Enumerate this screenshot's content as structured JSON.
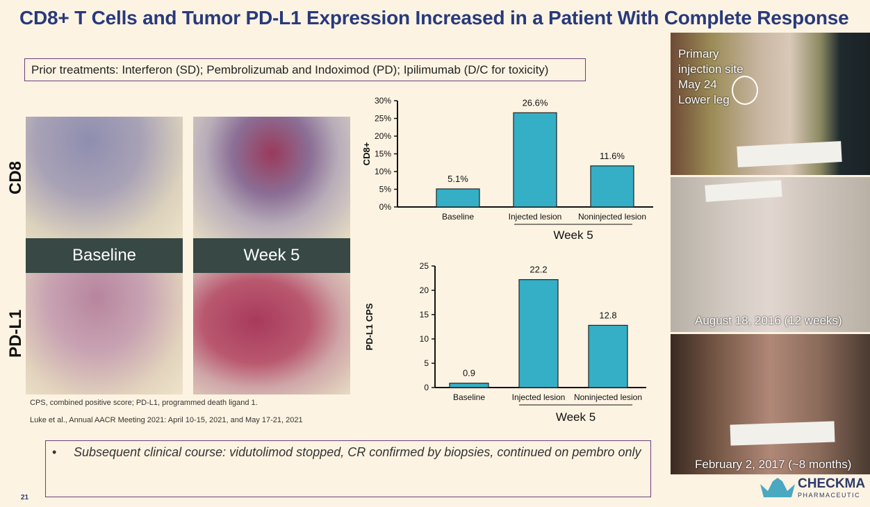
{
  "title": "CD8+ T Cells and Tumor PD-L1 Expression Increased in a Patient With Complete Response",
  "prior_treatments": "Prior treatments: Interferon (SD); Pembrolizumab and Indoximod (PD); Ipilimumab (D/C for toxicity)",
  "histology": {
    "row_labels": [
      "CD8",
      "PD-L1"
    ],
    "column_labels": [
      "Baseline",
      "Week 5"
    ]
  },
  "photos": [
    {
      "caption_lines": [
        "Primary",
        "injection site",
        "May 24",
        "Lower leg"
      ]
    },
    {
      "caption": "August 18, 2016 (12 weeks)"
    },
    {
      "caption": "February 2, 2017 (~8 months)"
    }
  ],
  "footnotes": [
    "CPS, combined positive score; PD-L1, programmed death ligand 1.",
    "Luke et al., Annual AACR Meeting 2021: April 10-15, 2021, and May 17-21, 2021"
  ],
  "clinical_course": "Subsequent clinical course: vidutolimod stopped, CR confirmed by biopsies, continued on pembro only",
  "page_number": "21",
  "logo": {
    "name": "CHECKMATE",
    "sub": "PHARMACEUTICALS",
    "color": "#4aa8c0"
  },
  "colors": {
    "bar": "#35afc6",
    "title": "#283a7c",
    "background": "#fdf3e2"
  },
  "chart_data": [
    {
      "type": "bar",
      "categories": [
        "Baseline",
        "Injected lesion",
        "Noninjected lesion"
      ],
      "values": [
        5.1,
        26.6,
        11.6
      ],
      "data_labels": [
        "5.1%",
        "26.6%",
        "11.6%"
      ],
      "ylabel": "CD8+",
      "ylim": [
        0,
        30
      ],
      "yticks": [
        "0%",
        "5%",
        "10%",
        "15%",
        "20%",
        "25%",
        "30%"
      ],
      "group_label": "Week 5",
      "grid": false
    },
    {
      "type": "bar",
      "categories": [
        "Baseline",
        "Injected lesion",
        "Noninjected lesion"
      ],
      "values": [
        0.9,
        22.2,
        12.8
      ],
      "data_labels": [
        "0.9",
        "22.2",
        "12.8"
      ],
      "ylabel": "PD-L1 CPS",
      "ylim": [
        0,
        25
      ],
      "yticks": [
        "0",
        "5",
        "10",
        "15",
        "20",
        "25"
      ],
      "group_label": "Week 5",
      "grid": false
    }
  ]
}
